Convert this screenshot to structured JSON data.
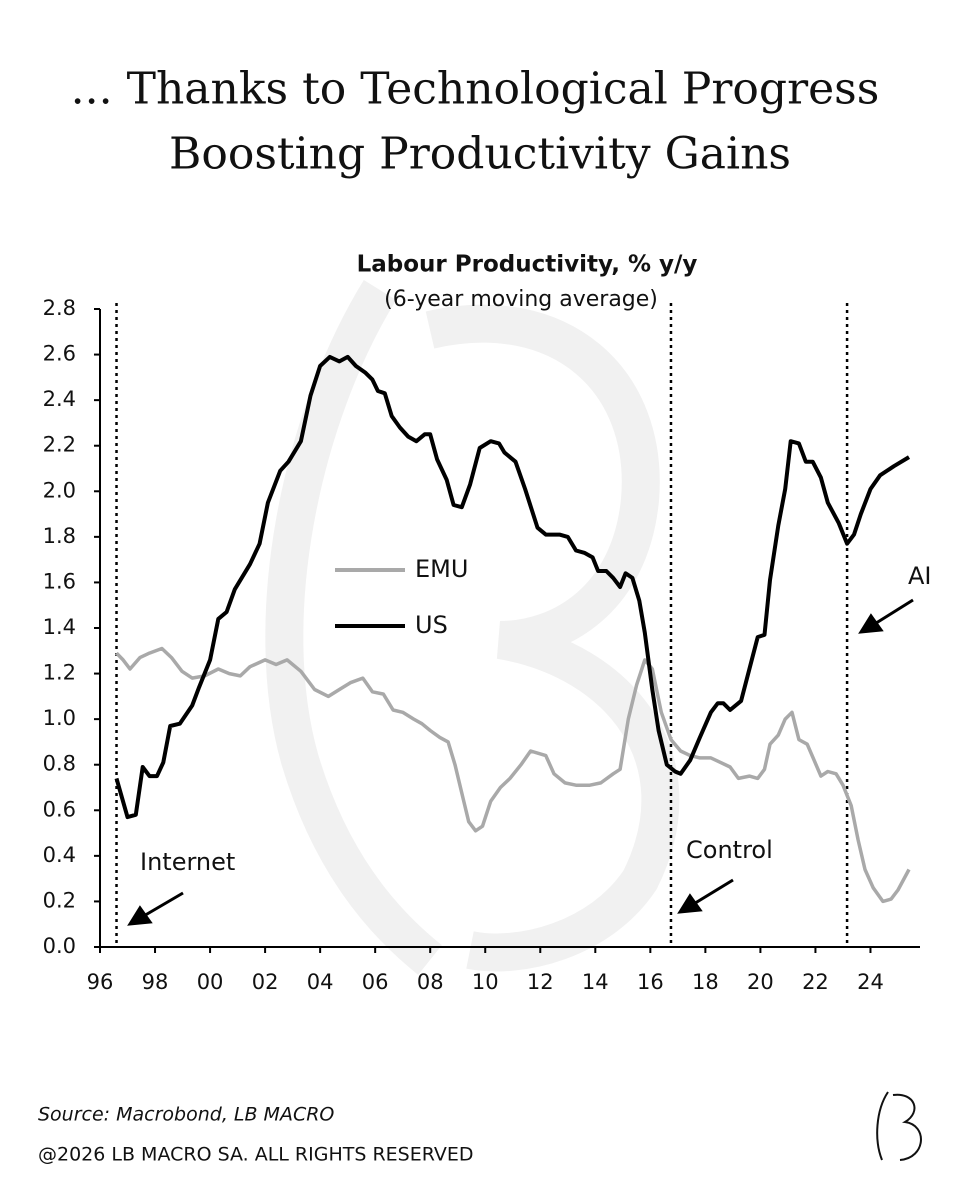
{
  "chart_data": {
    "type": "line",
    "title": [
      "... Thanks to Technological Progress",
      "Boosting Productivity Gains"
    ],
    "chart_title": "Labour Productivity, % y/y",
    "subtitle": "(6-year moving average)",
    "source": "Source: Macrobond, LB MACRO",
    "copyright": "@2026 LB MACRO SA. ALL RIGHTS RESERVED",
    "xlim": [
      1996,
      2025.8
    ],
    "xticks": [
      {
        "value": 1996,
        "label": "96"
      },
      {
        "value": 1998,
        "label": "98"
      },
      {
        "value": 2000,
        "label": "00"
      },
      {
        "value": 2002,
        "label": "02"
      },
      {
        "value": 2004,
        "label": "04"
      },
      {
        "value": 2006,
        "label": "06"
      },
      {
        "value": 2008,
        "label": "08"
      },
      {
        "value": 2010,
        "label": "10"
      },
      {
        "value": 2012,
        "label": "12"
      },
      {
        "value": 2014,
        "label": "14"
      },
      {
        "value": 2016,
        "label": "16"
      },
      {
        "value": 2018,
        "label": "18"
      },
      {
        "value": 2020,
        "label": "20"
      },
      {
        "value": 2022,
        "label": "22"
      },
      {
        "value": 2024,
        "label": "24"
      }
    ],
    "ylim": [
      0,
      2.8
    ],
    "yticks": [
      {
        "value": 0,
        "label": "0.0"
      },
      {
        "value": 0.2,
        "label": "0.2"
      },
      {
        "value": 0.4,
        "label": "0.4"
      },
      {
        "value": 0.6,
        "label": "0.6"
      },
      {
        "value": 0.8,
        "label": "0.8"
      },
      {
        "value": 1,
        "label": "1.0"
      },
      {
        "value": 1.2,
        "label": "1.2"
      },
      {
        "value": 1.4,
        "label": "1.4"
      },
      {
        "value": 1.6,
        "label": "1.6"
      },
      {
        "value": 1.8,
        "label": "1.8"
      },
      {
        "value": 2,
        "label": "2.0"
      },
      {
        "value": 2.2,
        "label": "2.2"
      },
      {
        "value": 2.4,
        "label": "2.4"
      },
      {
        "value": 2.6,
        "label": "2.6"
      },
      {
        "value": 2.8,
        "label": "2.8"
      }
    ],
    "grid": false,
    "vlines": [
      1996.6,
      2016.75,
      2023.15
    ],
    "annotations": [
      "Internet",
      "Control",
      "AI"
    ],
    "series": [
      {
        "name": "EMU",
        "color": "#a9a9a9",
        "x": [
          1996.6,
          1996.84,
          1997.09,
          1997.45,
          1997.8,
          1998.25,
          1998.6,
          1998.98,
          1999.35,
          1999.8,
          2000.3,
          2000.7,
          2001.1,
          2001.45,
          2002.0,
          2002.4,
          2002.8,
          2003.3,
          2003.8,
          2004.3,
          2004.7,
          2005.1,
          2005.55,
          2005.9,
          2006.3,
          2006.65,
          2007.0,
          2007.4,
          2007.7,
          2008.0,
          2008.35,
          2008.65,
          2008.9,
          2009.2,
          2009.4,
          2009.65,
          2009.9,
          2010.2,
          2010.55,
          2010.9,
          2011.3,
          2011.65,
          2012.2,
          2012.5,
          2012.9,
          2013.3,
          2013.8,
          2014.2,
          2014.65,
          2014.9,
          2015.2,
          2015.5,
          2015.8,
          2016.07,
          2016.4,
          2016.75,
          2017.1,
          2017.45,
          2017.8,
          2018.2,
          2018.55,
          2018.9,
          2019.2,
          2019.6,
          2019.9,
          2020.15,
          2020.35,
          2020.65,
          2020.9,
          2021.15,
          2021.4,
          2021.7,
          2021.95,
          2022.2,
          2022.45,
          2022.75,
          2023.0,
          2023.3,
          2023.55,
          2023.8,
          2024.1,
          2024.45,
          2024.75,
          2025.0,
          2025.4
        ],
        "values": [
          1.29,
          1.26,
          1.22,
          1.27,
          1.29,
          1.31,
          1.27,
          1.21,
          1.18,
          1.19,
          1.22,
          1.2,
          1.19,
          1.23,
          1.26,
          1.24,
          1.26,
          1.21,
          1.13,
          1.1,
          1.13,
          1.16,
          1.18,
          1.12,
          1.11,
          1.04,
          1.03,
          1.0,
          0.98,
          0.95,
          0.92,
          0.9,
          0.8,
          0.65,
          0.55,
          0.51,
          0.53,
          0.64,
          0.7,
          0.74,
          0.8,
          0.86,
          0.84,
          0.76,
          0.72,
          0.71,
          0.71,
          0.72,
          0.76,
          0.78,
          1.0,
          1.15,
          1.26,
          1.22,
          1.03,
          0.91,
          0.86,
          0.84,
          0.83,
          0.83,
          0.81,
          0.79,
          0.74,
          0.75,
          0.74,
          0.78,
          0.89,
          0.93,
          1.0,
          1.03,
          0.91,
          0.89,
          0.82,
          0.75,
          0.77,
          0.76,
          0.71,
          0.62,
          0.47,
          0.34,
          0.26,
          0.2,
          0.21,
          0.25,
          0.34
        ]
      },
      {
        "name": "US",
        "color": "#000000",
        "x": [
          1996.6,
          1997.0,
          1997.3,
          1997.55,
          1997.8,
          1998.07,
          1998.3,
          1998.55,
          1998.9,
          1999.35,
          1999.6,
          2000.0,
          2000.3,
          2000.6,
          2000.9,
          2001.45,
          2001.8,
          2002.1,
          2002.55,
          2002.85,
          2003.3,
          2003.65,
          2004.0,
          2004.35,
          2004.7,
          2005.0,
          2005.3,
          2005.65,
          2005.9,
          2006.1,
          2006.35,
          2006.6,
          2006.9,
          2007.2,
          2007.5,
          2007.8,
          2008.0,
          2008.25,
          2008.6,
          2008.85,
          2009.15,
          2009.45,
          2009.8,
          2010.2,
          2010.5,
          2010.7,
          2011.1,
          2011.45,
          2011.9,
          2012.2,
          2012.7,
          2013.0,
          2013.3,
          2013.6,
          2013.9,
          2014.1,
          2014.4,
          2014.65,
          2014.9,
          2015.1,
          2015.35,
          2015.6,
          2015.8,
          2016.07,
          2016.3,
          2016.6,
          2016.9,
          2017.1,
          2017.45,
          2017.8,
          2018.2,
          2018.45,
          2018.65,
          2018.9,
          2019.3,
          2019.6,
          2019.9,
          2020.15,
          2020.35,
          2020.65,
          2020.9,
          2021.1,
          2021.4,
          2021.65,
          2021.9,
          2022.2,
          2022.45,
          2022.85,
          2023.15,
          2023.4,
          2023.65,
          2024.0,
          2024.35,
          2024.85,
          2025.4
        ],
        "values": [
          0.74,
          0.57,
          0.58,
          0.79,
          0.75,
          0.75,
          0.81,
          0.97,
          0.98,
          1.06,
          1.14,
          1.26,
          1.44,
          1.47,
          1.57,
          1.68,
          1.77,
          1.95,
          2.09,
          2.13,
          2.22,
          2.42,
          2.55,
          2.59,
          2.57,
          2.59,
          2.55,
          2.52,
          2.49,
          2.44,
          2.43,
          2.33,
          2.28,
          2.24,
          2.22,
          2.25,
          2.25,
          2.14,
          2.05,
          1.94,
          1.93,
          2.03,
          2.19,
          2.22,
          2.21,
          2.17,
          2.13,
          2.01,
          1.84,
          1.81,
          1.81,
          1.8,
          1.74,
          1.73,
          1.71,
          1.65,
          1.65,
          1.62,
          1.58,
          1.64,
          1.62,
          1.52,
          1.38,
          1.13,
          0.95,
          0.8,
          0.77,
          0.76,
          0.82,
          0.92,
          1.03,
          1.07,
          1.07,
          1.04,
          1.08,
          1.22,
          1.36,
          1.37,
          1.61,
          1.85,
          2.01,
          2.22,
          2.21,
          2.13,
          2.13,
          2.06,
          1.95,
          1.86,
          1.77,
          1.81,
          1.9,
          2.01,
          2.07,
          2.11,
          2.15
        ]
      }
    ]
  }
}
